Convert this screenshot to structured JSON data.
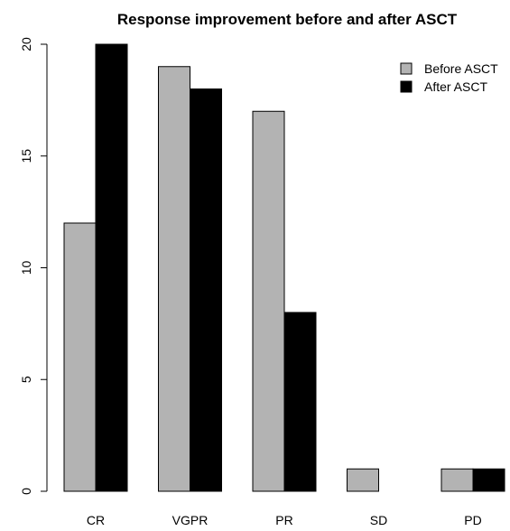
{
  "chart_data": {
    "type": "bar",
    "title": "Response improvement before and after ASCT",
    "xlabel": "",
    "ylabel": "",
    "categories": [
      "CR",
      "VGPR",
      "PR",
      "SD",
      "PD"
    ],
    "series": [
      {
        "name": "Before ASCT",
        "color": "#b3b3b3",
        "values": [
          12,
          19,
          17,
          1,
          1
        ]
      },
      {
        "name": "After ASCT",
        "color": "#000000",
        "values": [
          20,
          18,
          8,
          0,
          1
        ]
      }
    ],
    "ylim": [
      0,
      20
    ],
    "yticks": [
      0,
      5,
      10,
      15,
      20
    ],
    "grid": false,
    "legend_position": "top-right"
  }
}
